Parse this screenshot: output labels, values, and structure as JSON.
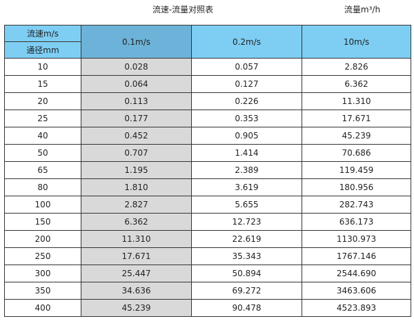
{
  "title": "流速-流量对照表",
  "unit_label": "流量m³/h",
  "header": {
    "velocity_label": "流速m/s",
    "diameter_label": "通径mm",
    "columns": [
      "0.1m/s",
      "0.2m/s",
      "10m/s"
    ]
  },
  "colors": {
    "header": "#7ecef4",
    "header_highlight": "#6db3d9",
    "column_highlight": "#d9d9d9"
  },
  "rows": [
    [
      "10",
      "0.028",
      "0.057",
      "2.826"
    ],
    [
      "15",
      "0.064",
      "0.127",
      "6.362"
    ],
    [
      "20",
      "0.113",
      "0.226",
      "11.310"
    ],
    [
      "25",
      "0.177",
      "0.353",
      "17.671"
    ],
    [
      "40",
      "0.452",
      "0.905",
      "45.239"
    ],
    [
      "50",
      "0.707",
      "1.414",
      "70.686"
    ],
    [
      "65",
      "1.195",
      "2.389",
      "119.459"
    ],
    [
      "80",
      "1.810",
      "3.619",
      "180.956"
    ],
    [
      "100",
      "2.827",
      "5.655",
      "282.743"
    ],
    [
      "150",
      "6.362",
      "12.723",
      "636.173"
    ],
    [
      "200",
      "11.310",
      "22.619",
      "1130.973"
    ],
    [
      "250",
      "17.671",
      "35.343",
      "1767.146"
    ],
    [
      "300",
      "25.447",
      "50.894",
      "2544.690"
    ],
    [
      "350",
      "34.636",
      "69.272",
      "3463.606"
    ],
    [
      "400",
      "45.239",
      "90.478",
      "4523.893"
    ]
  ]
}
